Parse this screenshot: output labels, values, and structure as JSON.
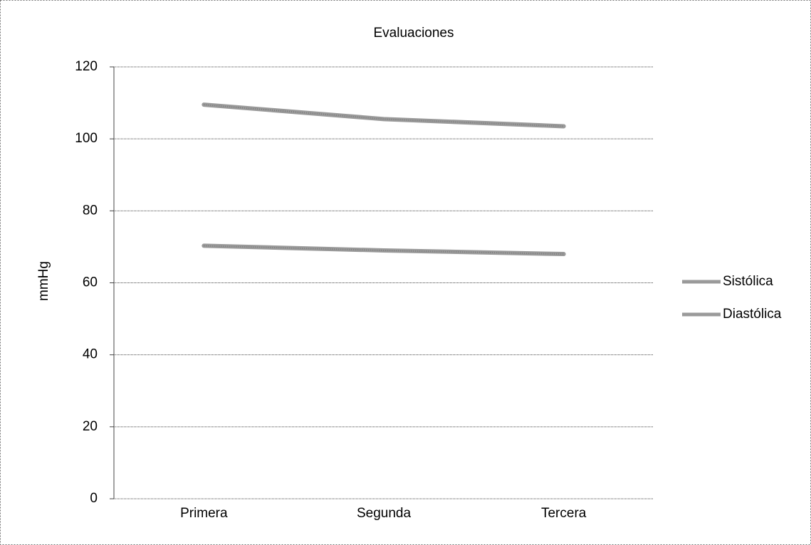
{
  "chart_data": {
    "type": "line",
    "title": "Evaluaciones",
    "y_label": "mmHg",
    "categories": [
      "Primera",
      "Segunda",
      "Tercera"
    ],
    "series": [
      {
        "name": "Sistólica",
        "color": "#9a9a9a",
        "values": [
          109.5,
          105.5,
          103.5
        ]
      },
      {
        "name": "Diastólica",
        "color": "#9a9a9a",
        "values": [
          70.3,
          69,
          68
        ]
      }
    ],
    "ylim": [
      0,
      120
    ],
    "yticks": [
      0,
      20,
      40,
      60,
      80,
      100,
      120
    ],
    "grid": true,
    "legend": "right"
  }
}
